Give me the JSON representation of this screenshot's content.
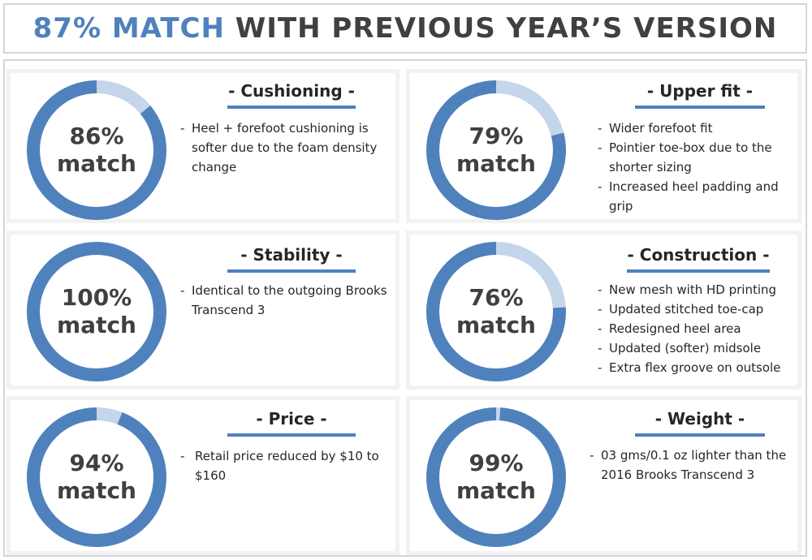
{
  "header": {
    "accent_text": "87% MATCH",
    "rest_text": "WITH PREVIOUS YEAR’S VERSION"
  },
  "colors": {
    "ring_primary": "#4f81bd",
    "ring_secondary": "#c5d5ea",
    "panel_border": "#f2f2f2",
    "frame_border": "#d5d5d5"
  },
  "panels": [
    {
      "title": "- Cushioning -",
      "percent_label": "86%",
      "match_label": "match",
      "match_fraction": 0.86,
      "bullets": [
        "Heel + forefoot cushioning is softer due to the foam density change"
      ]
    },
    {
      "title": "- Upper fit -",
      "percent_label": "79%",
      "match_label": "match",
      "match_fraction": 0.79,
      "bullets": [
        "Wider forefoot fit",
        "Pointier toe-box due to the shorter sizing",
        "Increased heel padding and grip"
      ]
    },
    {
      "title": "- Stability -",
      "percent_label": "100%",
      "match_label": "match",
      "match_fraction": 1.0,
      "bullets": [
        "Identical to the outgoing Brooks Transcend 3"
      ]
    },
    {
      "title": "- Construction -",
      "percent_label": "76%",
      "match_label": "match",
      "match_fraction": 0.76,
      "bullets": [
        "New mesh with HD printing",
        "Updated stitched toe-cap",
        "Redesigned heel area",
        "Updated (softer) midsole",
        "Extra flex groove on outsole"
      ]
    },
    {
      "title": "- Price -",
      "percent_label": "94%",
      "match_label": "match",
      "match_fraction": 0.94,
      "bullets": [
        "Retail price reduced by $10 to $160"
      ]
    },
    {
      "title": "- Weight -",
      "percent_label": "99%",
      "match_label": "match",
      "match_fraction": 0.99,
      "bullets": [
        "03 gms/0.1 oz lighter than the 2016 Brooks Transcend 3"
      ]
    }
  ]
}
